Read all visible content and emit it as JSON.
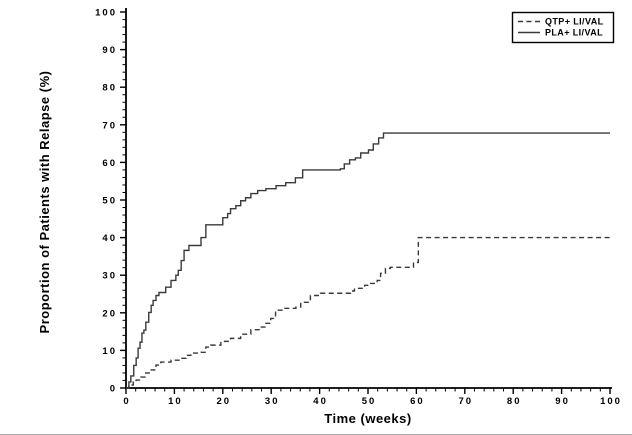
{
  "figure": {
    "background": "#ffffff",
    "axis_color": "#000000",
    "curve_color": "#3a3a3a",
    "legend_border_color": "#000000"
  },
  "axes": {
    "x": {
      "title": "Time (weeks)",
      "min": 0,
      "max": 100,
      "major_ticks": [
        0,
        10,
        20,
        30,
        40,
        50,
        60,
        70,
        80,
        90,
        100
      ],
      "minor_step": 2
    },
    "y": {
      "title": "Proportion of Patients with Relapse (%)",
      "min": 0,
      "max": 100,
      "major_ticks": [
        0,
        10,
        20,
        30,
        40,
        50,
        60,
        70,
        80,
        90,
        100
      ],
      "minor_step": 2
    }
  },
  "legend": {
    "items": [
      {
        "label": "QTP+ LI/VAL",
        "line_style": "dashed"
      },
      {
        "label": "PLA+ LI/VAL",
        "line_style": "solid"
      }
    ]
  },
  "chart_data": {
    "type": "line",
    "subtype": "kaplan-meier-step",
    "title": "",
    "xlabel": "Time (weeks)",
    "ylabel": "Proportion of Patients with Relapse (%)",
    "xlim": [
      0,
      100
    ],
    "ylim": [
      0,
      100
    ],
    "grid": false,
    "legend_position": "top-right",
    "interpolation": "step-after",
    "series": [
      {
        "name": "QTP+ LI/VAL",
        "line_style": "dashed",
        "points": [
          [
            0,
            0
          ],
          [
            0.6,
            0.8
          ],
          [
            1.5,
            1.6
          ],
          [
            2.1,
            2.1
          ],
          [
            3.1,
            2.9
          ],
          [
            4.1,
            4.0
          ],
          [
            5.2,
            4.8
          ],
          [
            6.2,
            6.1
          ],
          [
            7.2,
            6.9
          ],
          [
            9.3,
            7.4
          ],
          [
            11.3,
            7.9
          ],
          [
            12.4,
            8.7
          ],
          [
            13.4,
            9.3
          ],
          [
            15.5,
            9.5
          ],
          [
            16.5,
            10.9
          ],
          [
            17.5,
            11.4
          ],
          [
            19.6,
            12.4
          ],
          [
            21.6,
            13.2
          ],
          [
            23.7,
            14.3
          ],
          [
            25.8,
            15.5
          ],
          [
            27.8,
            16.2
          ],
          [
            28.9,
            17.2
          ],
          [
            29.9,
            18.5
          ],
          [
            30.9,
            20.7
          ],
          [
            32.6,
            21.2
          ],
          [
            35.1,
            21.5
          ],
          [
            36.1,
            22.8
          ],
          [
            38.1,
            24.6
          ],
          [
            40.2,
            25.2
          ],
          [
            46.4,
            25.8
          ],
          [
            47.2,
            26.5
          ],
          [
            49.3,
            27.3
          ],
          [
            50.3,
            27.8
          ],
          [
            51.9,
            28.6
          ],
          [
            52.6,
            30.5
          ],
          [
            53.6,
            31.8
          ],
          [
            54.6,
            32.1
          ],
          [
            59.4,
            33.4
          ],
          [
            60.4,
            40.0
          ],
          [
            100,
            40.0
          ]
        ]
      },
      {
        "name": "PLA+ LI/VAL",
        "line_style": "solid",
        "points": [
          [
            0,
            0
          ],
          [
            0.6,
            1.6
          ],
          [
            1.0,
            3.2
          ],
          [
            1.6,
            6.0
          ],
          [
            2.1,
            8.0
          ],
          [
            2.5,
            10.6
          ],
          [
            2.9,
            12.2
          ],
          [
            3.3,
            14.6
          ],
          [
            3.7,
            15.4
          ],
          [
            4.1,
            17.5
          ],
          [
            4.7,
            20.1
          ],
          [
            5.2,
            22.0
          ],
          [
            5.6,
            23.3
          ],
          [
            6.2,
            24.6
          ],
          [
            6.8,
            25.4
          ],
          [
            8.2,
            26.8
          ],
          [
            9.3,
            28.6
          ],
          [
            10.3,
            30.0
          ],
          [
            10.8,
            31.3
          ],
          [
            11.4,
            33.9
          ],
          [
            12.0,
            36.6
          ],
          [
            13.0,
            37.9
          ],
          [
            15.5,
            40.0
          ],
          [
            16.5,
            43.4
          ],
          [
            20.0,
            45.3
          ],
          [
            21.0,
            46.4
          ],
          [
            21.6,
            47.7
          ],
          [
            22.7,
            48.5
          ],
          [
            23.7,
            49.8
          ],
          [
            24.7,
            50.6
          ],
          [
            25.8,
            51.7
          ],
          [
            27.2,
            52.5
          ],
          [
            28.9,
            53.0
          ],
          [
            31.0,
            53.8
          ],
          [
            33.0,
            54.6
          ],
          [
            35.0,
            55.9
          ],
          [
            36.5,
            58.0
          ],
          [
            44.3,
            58.3
          ],
          [
            45.1,
            59.6
          ],
          [
            46.2,
            60.7
          ],
          [
            47.4,
            61.2
          ],
          [
            48.5,
            62.5
          ],
          [
            50.1,
            63.3
          ],
          [
            51.1,
            64.9
          ],
          [
            52.2,
            66.5
          ],
          [
            53.2,
            67.8
          ],
          [
            100,
            67.8
          ]
        ]
      }
    ]
  }
}
